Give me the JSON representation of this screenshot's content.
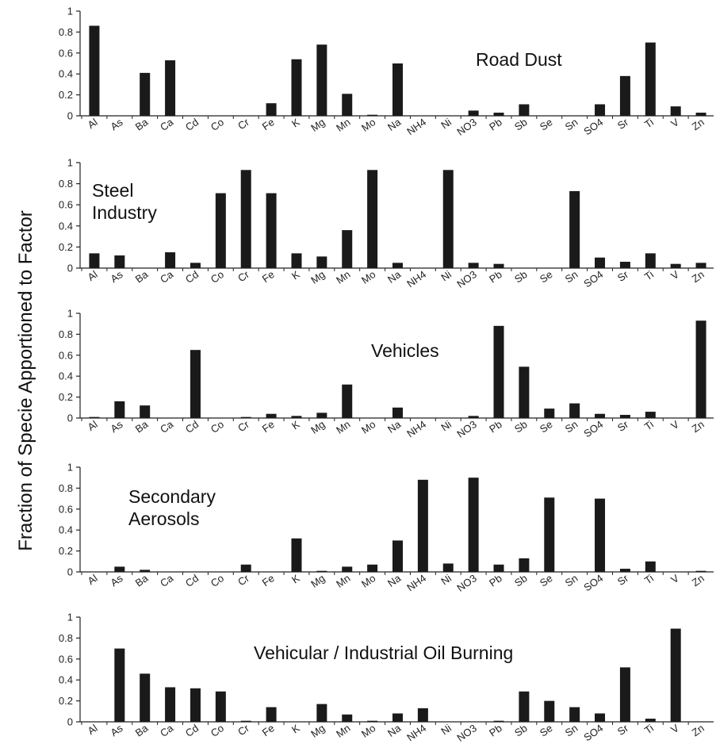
{
  "ylabel": "Fraction of Specie Apportioned to Factor",
  "chart_data": [
    {
      "type": "bar",
      "title_lines": [
        "Road Dust"
      ],
      "categories": [
        "Al",
        "As",
        "Ba",
        "Ca",
        "Cd",
        "Co",
        "Cr",
        "Fe",
        "K",
        "Mg",
        "Mn",
        "Mo",
        "Na",
        "NH4",
        "Ni",
        "NO3",
        "Pb",
        "Sb",
        "Se",
        "Sn",
        "SO4",
        "Sr",
        "Ti",
        "V",
        "Zn"
      ],
      "values": [
        0.86,
        0,
        0.41,
        0.53,
        0,
        0,
        0,
        0.12,
        0.54,
        0.68,
        0.21,
        0.01,
        0.5,
        0,
        0,
        0.05,
        0.03,
        0.11,
        0,
        0,
        0.11,
        0.38,
        0.7,
        0.09,
        0.03
      ],
      "yticks": [
        "0",
        "0.2",
        "0.4",
        "0.6",
        "0.8",
        "1"
      ],
      "ylim": [
        0,
        1
      ]
    },
    {
      "type": "bar",
      "title_lines": [
        "Steel",
        "Industry"
      ],
      "categories": [
        "Al",
        "As",
        "Ba",
        "Ca",
        "Cd",
        "Co",
        "Cr",
        "Fe",
        "K",
        "Mg",
        "Mn",
        "Mo",
        "Na",
        "NH4",
        "Ni",
        "NO3",
        "Pb",
        "Sb",
        "Se",
        "Sn",
        "SO4",
        "Sr",
        "Ti",
        "V",
        "Zn"
      ],
      "values": [
        0.14,
        0.12,
        0,
        0.15,
        0.05,
        0.71,
        0.93,
        0.71,
        0.14,
        0.11,
        0.36,
        0.93,
        0.05,
        0,
        0.93,
        0.05,
        0.04,
        0,
        0,
        0.73,
        0.1,
        0.06,
        0.14,
        0.04,
        0.05
      ],
      "yticks": [
        "0",
        "0.2",
        "0.4",
        "0.6",
        "0.8",
        "1"
      ],
      "ylim": [
        0,
        1
      ]
    },
    {
      "type": "bar",
      "title_lines": [
        "Vehicles"
      ],
      "categories": [
        "Al",
        "As",
        "Ba",
        "Ca",
        "Cd",
        "Co",
        "Cr",
        "Fe",
        "K",
        "Mg",
        "Mn",
        "Mo",
        "Na",
        "NH4",
        "Ni",
        "NO3",
        "Pb",
        "Sb",
        "Se",
        "Sn",
        "SO4",
        "Sr",
        "Ti",
        "V",
        "Zn"
      ],
      "values": [
        0.01,
        0.16,
        0.12,
        0,
        0.65,
        0,
        0.01,
        0.04,
        0.02,
        0.05,
        0.32,
        0,
        0.1,
        0,
        0,
        0.02,
        0.88,
        0.49,
        0.09,
        0.14,
        0.04,
        0.03,
        0.06,
        0,
        0.93
      ],
      "yticks": [
        "0",
        "0.2",
        "0.4",
        "0.6",
        "0.8",
        "1"
      ],
      "ylim": [
        0,
        1
      ]
    },
    {
      "type": "bar",
      "title_lines": [
        "Secondary",
        "Aerosols"
      ],
      "categories": [
        "Al",
        "As",
        "Ba",
        "Ca",
        "Cd",
        "Co",
        "Cr",
        "Fe",
        "K",
        "Mg",
        "Mn",
        "Mo",
        "Na",
        "NH4",
        "Ni",
        "NO3",
        "Pb",
        "Sb",
        "Se",
        "Sn",
        "SO4",
        "Sr",
        "Ti",
        "V",
        "Zn"
      ],
      "values": [
        0,
        0.05,
        0.02,
        0,
        0,
        0,
        0.07,
        0,
        0.32,
        0.01,
        0.05,
        0.07,
        0.3,
        0.88,
        0.08,
        0.9,
        0.07,
        0.13,
        0.71,
        0,
        0.7,
        0.03,
        0.1,
        0,
        0.01
      ],
      "yticks": [
        "0",
        "0.2",
        "0.4",
        "0.6",
        "0.8",
        "1"
      ],
      "ylim": [
        0,
        1
      ]
    },
    {
      "type": "bar",
      "title_lines": [
        "Vehicular / Industrial Oil Burning"
      ],
      "categories": [
        "Al",
        "As",
        "Ba",
        "Ca",
        "Cd",
        "Co",
        "Cr",
        "Fe",
        "K",
        "Mg",
        "Mn",
        "Mo",
        "Na",
        "NH4",
        "Ni",
        "NO3",
        "Pb",
        "Sb",
        "Se",
        "Sn",
        "SO4",
        "Sr",
        "Ti",
        "V",
        "Zn"
      ],
      "values": [
        0,
        0.7,
        0.46,
        0.33,
        0.32,
        0.29,
        0.01,
        0.14,
        0,
        0.17,
        0.07,
        0.01,
        0.08,
        0.13,
        0,
        0,
        0.01,
        0.29,
        0.2,
        0.14,
        0.08,
        0.52,
        0.03,
        0.89,
        0
      ],
      "yticks": [
        "0",
        "0.2",
        "0.4",
        "0.6",
        "0.8",
        "1"
      ],
      "ylim": [
        0,
        1
      ]
    }
  ]
}
